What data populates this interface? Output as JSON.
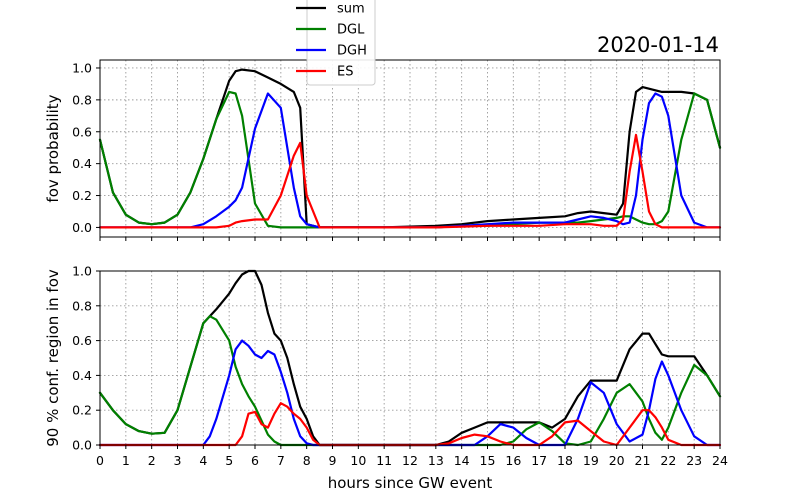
{
  "date_label": "2020-01-14",
  "legend": [
    {
      "name": "sum",
      "color": "#000000"
    },
    {
      "name": "DGL",
      "color": "#008000"
    },
    {
      "name": "DGH",
      "color": "#0000ff"
    },
    {
      "name": "ES",
      "color": "#ff0000"
    }
  ],
  "chart_data": [
    {
      "type": "line",
      "title": "",
      "xlabel": "",
      "ylabel": "fov probability",
      "xlim": [
        0,
        24
      ],
      "ylim": [
        -0.06,
        1.05
      ],
      "yticks": [
        "0.0",
        "0.2",
        "0.4",
        "0.6",
        "0.8",
        "1.0"
      ],
      "yticks_values": [
        0,
        0.2,
        0.4,
        0.6,
        0.8,
        1.0
      ],
      "grid": true,
      "x": [
        0,
        0.5,
        1,
        1.5,
        2,
        2.5,
        3,
        3.5,
        4,
        4.5,
        5,
        5.25,
        5.5,
        6,
        6.5,
        7,
        7.5,
        7.75,
        8,
        8.5,
        9,
        10,
        11,
        12,
        13,
        14,
        15,
        16,
        17,
        18,
        18.5,
        19,
        19.5,
        20,
        20.25,
        20.5,
        20.75,
        21,
        21.25,
        21.5,
        21.75,
        22,
        22.5,
        23,
        23.5,
        24
      ],
      "series": [
        {
          "name": "sum",
          "color": "#000000",
          "values": [
            0.55,
            0.22,
            0.08,
            0.03,
            0.02,
            0.03,
            0.08,
            0.22,
            0.43,
            0.68,
            0.92,
            0.98,
            0.99,
            0.98,
            0.94,
            0.9,
            0.85,
            0.75,
            0.02,
            0.0,
            0.0,
            0.0,
            0.0,
            0.005,
            0.01,
            0.02,
            0.04,
            0.05,
            0.06,
            0.07,
            0.09,
            0.1,
            0.09,
            0.08,
            0.15,
            0.6,
            0.85,
            0.88,
            0.87,
            0.86,
            0.85,
            0.85,
            0.85,
            0.84,
            0.8,
            0.5
          ]
        },
        {
          "name": "DGL",
          "color": "#008000",
          "values": [
            0.55,
            0.22,
            0.08,
            0.03,
            0.02,
            0.03,
            0.08,
            0.22,
            0.43,
            0.68,
            0.85,
            0.84,
            0.7,
            0.15,
            0.01,
            0.0,
            0.0,
            0.0,
            0.0,
            0.0,
            0.0,
            0.0,
            0.0,
            0.0,
            0.0,
            0.01,
            0.01,
            0.02,
            0.03,
            0.03,
            0.03,
            0.04,
            0.05,
            0.06,
            0.07,
            0.07,
            0.05,
            0.03,
            0.02,
            0.02,
            0.04,
            0.1,
            0.55,
            0.84,
            0.8,
            0.5
          ]
        },
        {
          "name": "DGH",
          "color": "#0000ff",
          "values": [
            0.0,
            0.0,
            0.0,
            0.0,
            0.0,
            0.0,
            0.0,
            0.0,
            0.02,
            0.07,
            0.13,
            0.17,
            0.25,
            0.62,
            0.84,
            0.75,
            0.25,
            0.07,
            0.02,
            0.0,
            0.0,
            0.0,
            0.0,
            0.0,
            0.0,
            0.01,
            0.02,
            0.03,
            0.03,
            0.03,
            0.05,
            0.07,
            0.06,
            0.04,
            0.02,
            0.03,
            0.2,
            0.55,
            0.78,
            0.84,
            0.82,
            0.7,
            0.2,
            0.03,
            0.0,
            0.0
          ]
        },
        {
          "name": "ES",
          "color": "#ff0000",
          "values": [
            0.0,
            0.0,
            0.0,
            0.0,
            0.0,
            0.0,
            0.0,
            0.0,
            0.0,
            0.0,
            0.01,
            0.03,
            0.04,
            0.05,
            0.05,
            0.2,
            0.45,
            0.53,
            0.2,
            0.0,
            0.0,
            0.0,
            0.0,
            0.0,
            0.0,
            0.005,
            0.01,
            0.01,
            0.01,
            0.02,
            0.02,
            0.02,
            0.01,
            0.01,
            0.05,
            0.35,
            0.58,
            0.35,
            0.1,
            0.02,
            0.0,
            0.0,
            0.0,
            0.0,
            0.0,
            0.0
          ]
        }
      ]
    },
    {
      "type": "line",
      "title": "",
      "xlabel": "hours since GW event",
      "ylabel": "90 % conf. region in fov",
      "xlim": [
        0,
        24
      ],
      "ylim": [
        0,
        1.0
      ],
      "xticks": [
        "0",
        "1",
        "2",
        "3",
        "4",
        "5",
        "6",
        "7",
        "8",
        "9",
        "10",
        "11",
        "12",
        "13",
        "14",
        "15",
        "16",
        "17",
        "18",
        "19",
        "20",
        "21",
        "22",
        "23",
        "24"
      ],
      "yticks": [
        "0.0",
        "0.2",
        "0.4",
        "0.6",
        "0.8",
        "1.0"
      ],
      "yticks_values": [
        0,
        0.2,
        0.4,
        0.6,
        0.8,
        1.0
      ],
      "grid": true,
      "x": [
        0,
        0.5,
        1,
        1.5,
        2,
        2.5,
        3,
        3.5,
        4,
        4.25,
        4.5,
        5,
        5.25,
        5.5,
        5.75,
        6,
        6.25,
        6.5,
        6.75,
        7,
        7.25,
        7.5,
        7.75,
        8,
        8.25,
        8.5,
        9,
        10,
        11,
        12,
        13,
        13.5,
        14,
        14.5,
        15,
        15.5,
        16,
        16.5,
        17,
        17.5,
        18,
        18.5,
        19,
        19.5,
        20,
        20.5,
        21,
        21.25,
        21.5,
        21.75,
        22,
        22.5,
        23,
        23.5,
        24
      ],
      "series": [
        {
          "name": "sum",
          "color": "#000000",
          "values": [
            0.3,
            0.2,
            0.12,
            0.08,
            0.065,
            0.07,
            0.2,
            0.45,
            0.7,
            0.74,
            0.78,
            0.87,
            0.93,
            0.98,
            1.0,
            1.0,
            0.92,
            0.76,
            0.64,
            0.6,
            0.5,
            0.35,
            0.22,
            0.15,
            0.05,
            0.0,
            0.0,
            0.0,
            0.0,
            0.0,
            0.0,
            0.02,
            0.07,
            0.1,
            0.13,
            0.13,
            0.13,
            0.13,
            0.13,
            0.1,
            0.15,
            0.28,
            0.37,
            0.37,
            0.37,
            0.55,
            0.64,
            0.64,
            0.58,
            0.52,
            0.51,
            0.51,
            0.51,
            0.4,
            0.28
          ]
        },
        {
          "name": "DGL",
          "color": "#008000",
          "values": [
            0.3,
            0.2,
            0.12,
            0.08,
            0.065,
            0.07,
            0.2,
            0.45,
            0.7,
            0.74,
            0.72,
            0.6,
            0.45,
            0.35,
            0.28,
            0.22,
            0.14,
            0.06,
            0.02,
            0.0,
            0.0,
            0.0,
            0.0,
            0.0,
            0.0,
            0.0,
            0.0,
            0.0,
            0.0,
            0.0,
            0.0,
            0.0,
            0.0,
            0.0,
            0.0,
            0.0,
            0.02,
            0.09,
            0.13,
            0.08,
            0.01,
            0.0,
            0.02,
            0.15,
            0.3,
            0.35,
            0.25,
            0.15,
            0.07,
            0.03,
            0.1,
            0.3,
            0.46,
            0.4,
            0.28
          ]
        },
        {
          "name": "DGH",
          "color": "#0000ff",
          "values": [
            0.0,
            0.0,
            0.0,
            0.0,
            0.0,
            0.0,
            0.0,
            0.0,
            0.0,
            0.05,
            0.15,
            0.4,
            0.55,
            0.6,
            0.57,
            0.52,
            0.5,
            0.54,
            0.52,
            0.42,
            0.3,
            0.15,
            0.05,
            0.01,
            0.0,
            0.0,
            0.0,
            0.0,
            0.0,
            0.0,
            0.0,
            0.0,
            0.0,
            0.0,
            0.05,
            0.12,
            0.1,
            0.04,
            0.0,
            0.0,
            0.0,
            0.15,
            0.36,
            0.3,
            0.12,
            0.02,
            0.06,
            0.2,
            0.38,
            0.48,
            0.4,
            0.2,
            0.05,
            0.0,
            0.0
          ]
        },
        {
          "name": "ES",
          "color": "#ff0000",
          "values": [
            0.0,
            0.0,
            0.0,
            0.0,
            0.0,
            0.0,
            0.0,
            0.0,
            0.0,
            0.0,
            0.0,
            0.0,
            0.0,
            0.05,
            0.18,
            0.19,
            0.12,
            0.1,
            0.18,
            0.24,
            0.22,
            0.18,
            0.15,
            0.1,
            0.03,
            0.0,
            0.0,
            0.0,
            0.0,
            0.0,
            0.0,
            0.01,
            0.04,
            0.06,
            0.05,
            0.02,
            0.0,
            0.0,
            0.0,
            0.05,
            0.13,
            0.14,
            0.08,
            0.02,
            0.0,
            0.1,
            0.2,
            0.2,
            0.16,
            0.1,
            0.03,
            0.0,
            0.0,
            0.0,
            0.0
          ]
        }
      ]
    }
  ]
}
